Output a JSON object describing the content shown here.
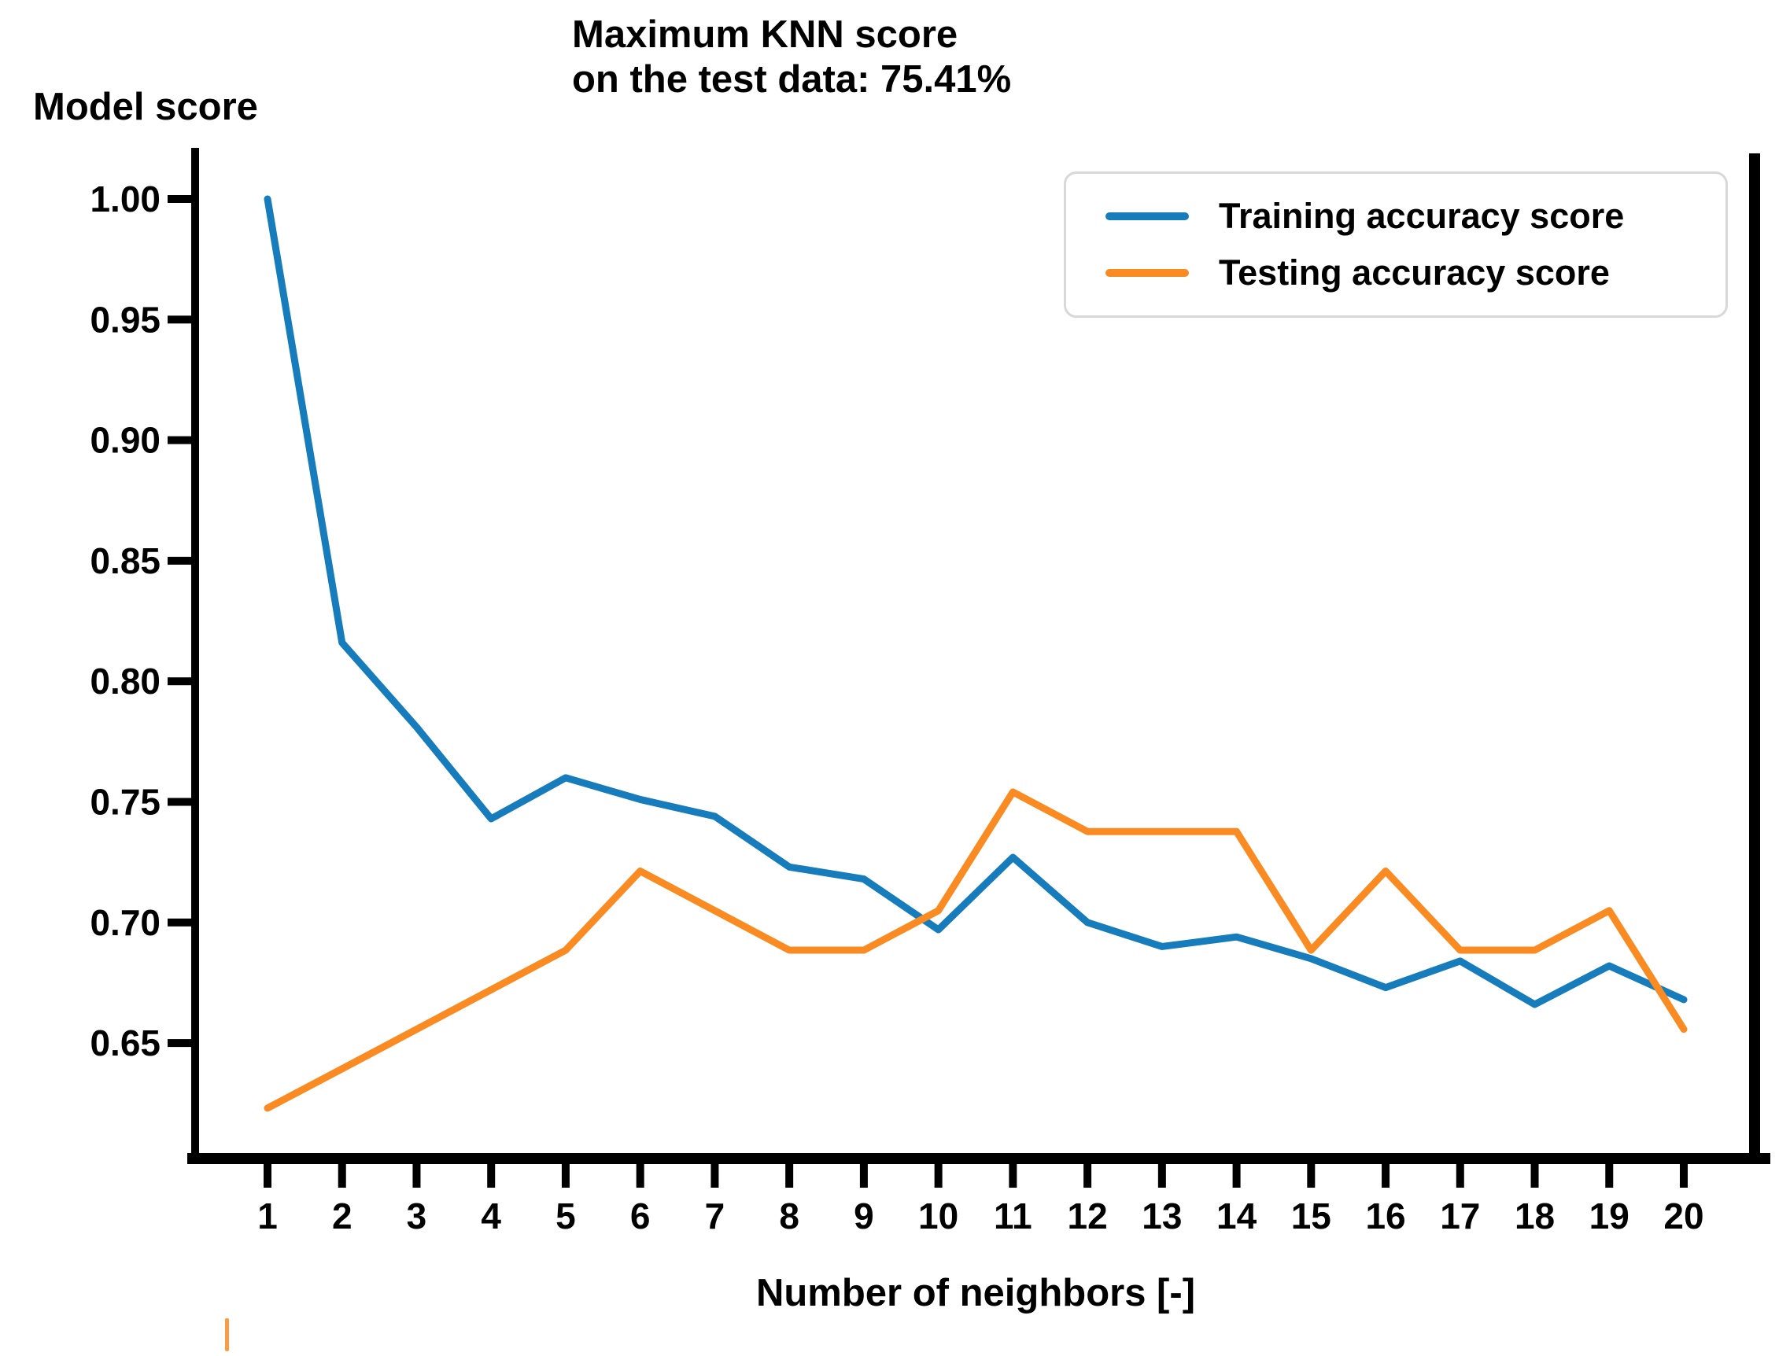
{
  "chart": {
    "title_lines": [
      "Maximum KNN score",
      "on the test data: 75.41%"
    ],
    "y_axis_label": "Model score",
    "x_axis_label": "Number of neighbors [-]"
  },
  "chart_data": {
    "type": "line",
    "title": "Maximum KNN score on the test data: 75.41%",
    "xlabel": "Number of neighbors [-]",
    "ylabel": "Model score",
    "x": [
      1,
      2,
      3,
      4,
      5,
      6,
      7,
      8,
      9,
      10,
      11,
      12,
      13,
      14,
      15,
      16,
      17,
      18,
      19,
      20
    ],
    "x_tick_labels": [
      "1",
      "2",
      "3",
      "4",
      "5",
      "6",
      "7",
      "8",
      "9",
      "10",
      "11",
      "12",
      "13",
      "14",
      "15",
      "16",
      "17",
      "18",
      "19",
      "20"
    ],
    "y_tick_labels": [
      "1.00",
      "0.95",
      "0.90",
      "0.85",
      "0.80",
      "0.75",
      "0.70",
      "0.65"
    ],
    "y_tick_values": [
      1.0,
      0.95,
      0.9,
      0.85,
      0.8,
      0.75,
      0.7,
      0.65
    ],
    "xlim": [
      0,
      21
    ],
    "ylim": [
      0.602,
      1.021
    ],
    "grid": false,
    "legend_position": "upper right",
    "max_test_score_pct": "75.41%",
    "series": [
      {
        "name": "Training accuracy score",
        "color": "#177cbc",
        "values": [
          1.0,
          0.816,
          0.781,
          0.743,
          0.76,
          0.751,
          0.744,
          0.723,
          0.718,
          0.697,
          0.727,
          0.7,
          0.69,
          0.694,
          0.685,
          0.673,
          0.684,
          0.666,
          0.682,
          0.668
        ]
      },
      {
        "name": "Testing accuracy score",
        "color": "#fa8b23",
        "values": [
          0.623,
          0.6393,
          0.6557,
          0.6721,
          0.6885,
          0.7213,
          0.7049,
          0.6885,
          0.6885,
          0.7049,
          0.7541,
          0.7377,
          0.7377,
          0.7377,
          0.6885,
          0.7213,
          0.6885,
          0.6885,
          0.7049,
          0.6557
        ]
      }
    ],
    "axis_color": "#000000"
  }
}
